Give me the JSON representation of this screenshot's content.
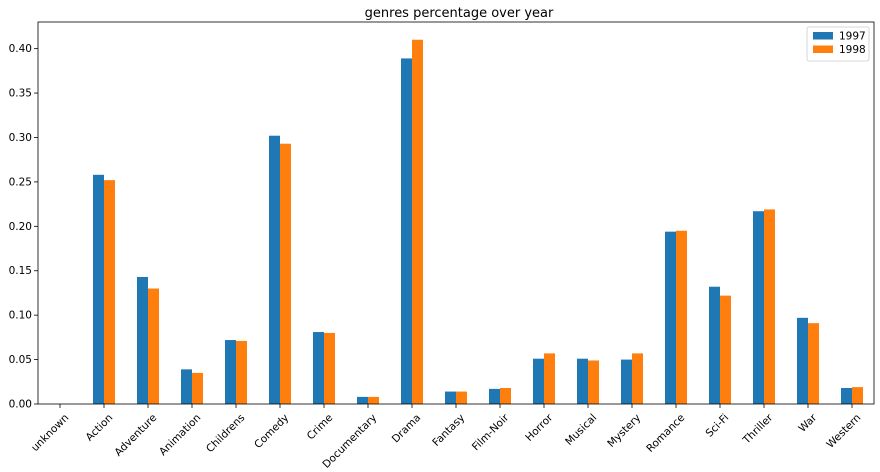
{
  "chart_data": {
    "type": "bar",
    "title": "genres percentage over year",
    "xlabel": "",
    "ylabel": "",
    "categories": [
      "unknown",
      "Action",
      "Adventure",
      "Animation",
      "Childrens",
      "Comedy",
      "Crime",
      "Documentary",
      "Drama",
      "Fantasy",
      "Film-Noir",
      "Horror",
      "Musical",
      "Mystery",
      "Romance",
      "Sci-Fi",
      "Thriller",
      "War",
      "Western"
    ],
    "series": [
      {
        "name": "1997",
        "color": "#1f77b4",
        "values": [
          0.0,
          0.258,
          0.143,
          0.039,
          0.072,
          0.302,
          0.081,
          0.008,
          0.389,
          0.014,
          0.017,
          0.051,
          0.051,
          0.05,
          0.194,
          0.132,
          0.217,
          0.097,
          0.018
        ]
      },
      {
        "name": "1998",
        "color": "#ff7f0e",
        "values": [
          0.0,
          0.252,
          0.13,
          0.035,
          0.071,
          0.293,
          0.08,
          0.008,
          0.41,
          0.014,
          0.018,
          0.057,
          0.049,
          0.057,
          0.195,
          0.122,
          0.219,
          0.091,
          0.019
        ]
      }
    ],
    "yticks": [
      "0.00",
      "0.05",
      "0.10",
      "0.15",
      "0.20",
      "0.25",
      "0.30",
      "0.35",
      "0.40"
    ],
    "ylim": [
      0,
      0.43
    ],
    "grid": false,
    "legend_position": "top-right"
  }
}
